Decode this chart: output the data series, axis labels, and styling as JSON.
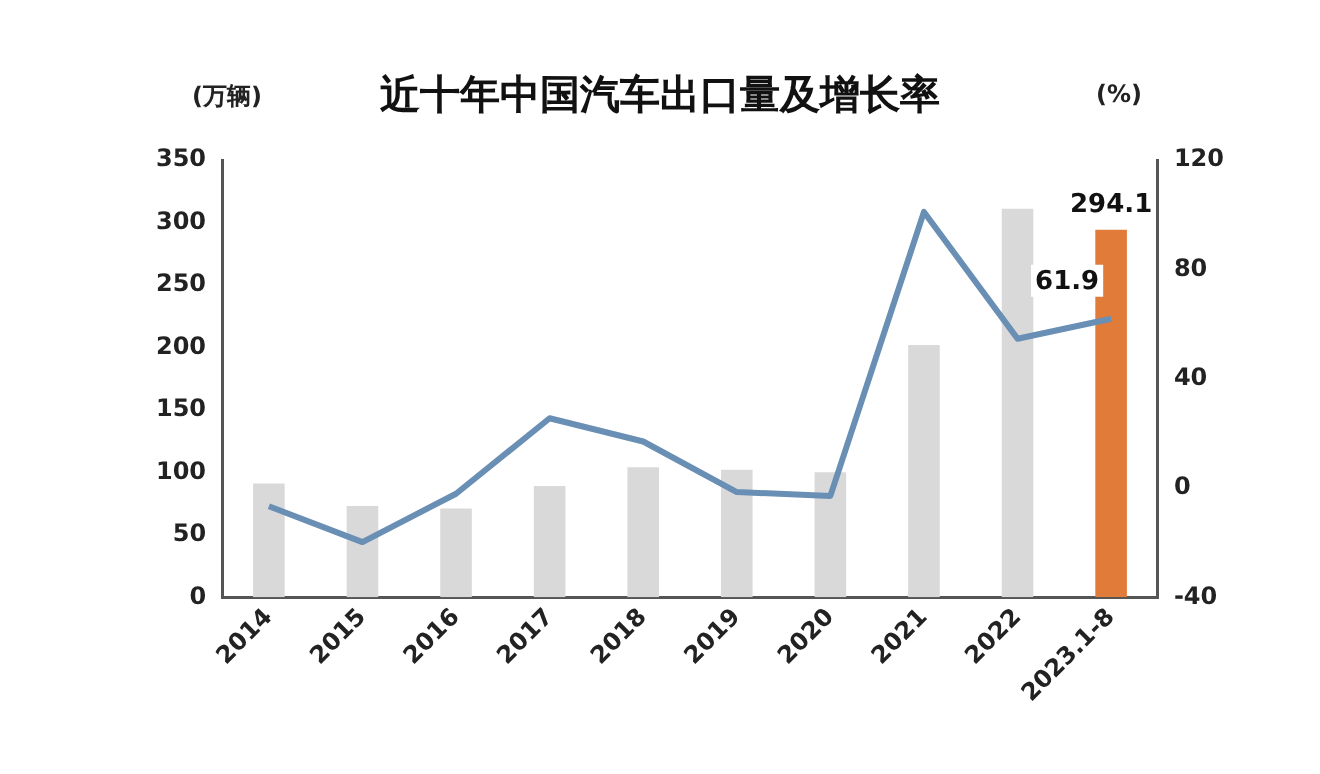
{
  "chart_data": {
    "type": "bar",
    "title": "近十年中国汽车出口量及增长率",
    "ylabel": "(万辆)",
    "y2label": "(%)",
    "categories": [
      "2014",
      "2015",
      "2016",
      "2017",
      "2018",
      "2019",
      "2020",
      "2021",
      "2022",
      "2023.1-8"
    ],
    "series": [
      {
        "colors": [
          "#d9d9d9",
          "#d9d9d9",
          "#d9d9d9",
          "#d9d9d9",
          "#d9d9d9",
          "#d9d9d9",
          "#d9d9d9",
          "#d9d9d9",
          "#d9d9d9",
          "#e07b39"
        ],
        "values": [
          91,
          73,
          71,
          89,
          104,
          102,
          100,
          202,
          311,
          294.1
        ],
        "value_labels": [
          null,
          null,
          null,
          null,
          null,
          null,
          null,
          null,
          null,
          "294.1"
        ]
      },
      {
        "type": "line",
        "axis": "y2",
        "color": "#6a8fb5",
        "values": [
          -6.7,
          -19.8,
          -2.1,
          25.5,
          17,
          -1.5,
          -2.9,
          101,
          54.6,
          61.9
        ],
        "value_labels": [
          null,
          null,
          null,
          null,
          null,
          null,
          null,
          null,
          null,
          "61.9"
        ]
      }
    ],
    "ylim": [
      0,
      350
    ],
    "yticks": [
      0,
      50,
      100,
      150,
      200,
      250,
      300,
      350
    ],
    "y2lim": [
      -40,
      120
    ],
    "y2ticks": [
      -40,
      0,
      40,
      80,
      120
    ],
    "marker": "none",
    "grid": false,
    "legend": false
  }
}
